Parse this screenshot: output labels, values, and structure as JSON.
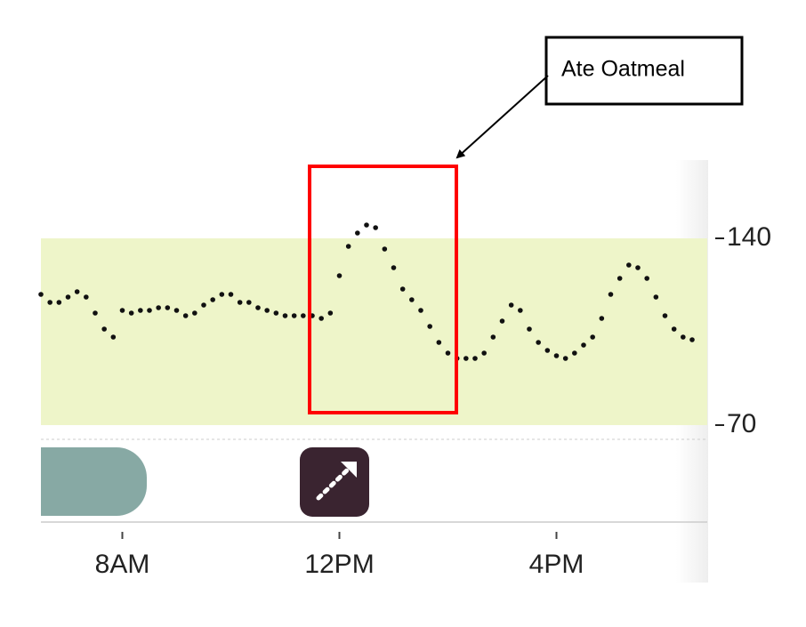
{
  "chart_data": {
    "type": "scatter",
    "annotation": "Ate Oatmeal",
    "x": [
      390,
      400,
      410,
      420,
      430,
      440,
      450,
      460,
      470,
      480,
      490,
      500,
      510,
      520,
      530,
      540,
      550,
      560,
      570,
      580,
      590,
      600,
      610,
      620,
      630,
      640,
      650,
      660,
      670,
      680,
      690,
      700,
      710,
      720,
      730,
      740,
      750,
      760,
      770,
      780,
      790,
      800,
      810,
      820,
      830,
      840,
      850,
      860,
      870,
      880,
      890,
      900,
      910,
      920,
      930,
      940,
      950,
      960,
      970,
      980,
      990,
      1000,
      1010,
      1020,
      1030,
      1040,
      1050,
      1060,
      1070,
      1080,
      1090,
      1100,
      1110
    ],
    "values": [
      119,
      116,
      116,
      118,
      120,
      118,
      112,
      106,
      103,
      113,
      112,
      113,
      113,
      114,
      114,
      113,
      111,
      112,
      115,
      117,
      119,
      119,
      116,
      116,
      114,
      113,
      112,
      111,
      111,
      111,
      111,
      110,
      112,
      126,
      137,
      142,
      145,
      144,
      136,
      129,
      121,
      117,
      113,
      107,
      101,
      97,
      95,
      95,
      95,
      97,
      103,
      109,
      115,
      113,
      106,
      101,
      98,
      96,
      95,
      97,
      100,
      103,
      110,
      119,
      125,
      130,
      129,
      125,
      118,
      111,
      106,
      103,
      102
    ],
    "color": "#111111",
    "target_range": [
      70,
      140
    ],
    "target_color": "#eef5c9",
    "xlim": [
      390,
      1110
    ],
    "xticks": [
      {
        "value": 480,
        "label": "8AM"
      },
      {
        "value": 720,
        "label": "12PM"
      },
      {
        "value": 960,
        "label": "4PM"
      }
    ],
    "ylim": [
      65,
      168
    ],
    "yticks": [
      70,
      140
    ]
  }
}
